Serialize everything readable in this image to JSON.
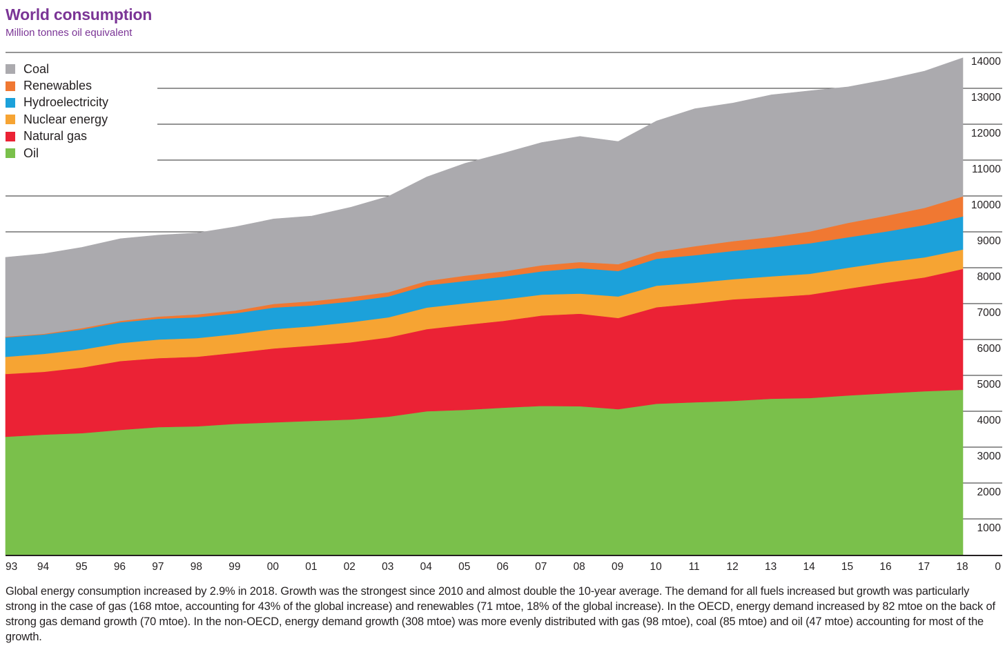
{
  "header": {
    "title": "World consumption",
    "subtitle": "Million tonnes oil equivalent"
  },
  "caption": "Global energy consumption increased by 2.9% in 2018. Growth was the strongest since 2010 and almost double the 10-year average. The demand for all fuels increased but growth was particularly strong in the case of gas (168 mtoe, accounting for 43% of the global increase) and renewables (71 mtoe, 18% of the global increase). In the OECD, energy demand increased by 82 mtoe on the back of strong gas demand growth (70 mtoe). In the non-OECD, energy demand growth (308 mtoe) was more evenly distributed with gas (98 mtoe), coal (85 mtoe) and oil (47 mtoe) accounting for most of the growth.",
  "chart_data": {
    "type": "area",
    "stacked": true,
    "title": "World consumption",
    "subtitle": "Million tonnes oil equivalent",
    "xlabel": "",
    "ylabel": "Million tonnes oil equivalent",
    "categories": [
      "93",
      "94",
      "95",
      "96",
      "97",
      "98",
      "99",
      "00",
      "01",
      "02",
      "03",
      "04",
      "05",
      "06",
      "07",
      "08",
      "09",
      "10",
      "11",
      "12",
      "13",
      "14",
      "15",
      "16",
      "17",
      "18"
    ],
    "ylim": [
      0,
      14000
    ],
    "yticks": [
      "0",
      "1000",
      "2000",
      "3000",
      "4000",
      "5000",
      "6000",
      "7000",
      "8000",
      "9000",
      "10000",
      "11000",
      "12000",
      "13000",
      "14000"
    ],
    "y_axis_side": "right",
    "grid": true,
    "legend_position": "top-left",
    "legend_order": [
      "Coal",
      "Renewables",
      "Hydroelectricity",
      "Nuclear energy",
      "Natural gas",
      "Oil"
    ],
    "series": [
      {
        "name": "Oil",
        "color": "#7ac04b",
        "values": [
          3290,
          3350,
          3390,
          3480,
          3560,
          3580,
          3650,
          3690,
          3730,
          3770,
          3850,
          4000,
          4040,
          4100,
          4150,
          4140,
          4060,
          4210,
          4250,
          4290,
          4350,
          4370,
          4440,
          4500,
          4560,
          4600
        ]
      },
      {
        "name": "Natural gas",
        "color": "#eb2235",
        "values": [
          1750,
          1750,
          1830,
          1920,
          1920,
          1940,
          1980,
          2060,
          2100,
          2150,
          2210,
          2290,
          2370,
          2420,
          2520,
          2580,
          2540,
          2690,
          2750,
          2830,
          2830,
          2880,
          2980,
          3080,
          3170,
          3370
        ]
      },
      {
        "name": "Nuclear energy",
        "color": "#f6a433",
        "values": [
          480,
          500,
          500,
          500,
          520,
          520,
          520,
          540,
          540,
          560,
          560,
          600,
          600,
          600,
          580,
          560,
          600,
          600,
          580,
          560,
          580,
          580,
          580,
          580,
          560,
          540
        ]
      },
      {
        "name": "Hydroelectricity",
        "color": "#1ca1da",
        "values": [
          540,
          540,
          560,
          580,
          580,
          580,
          580,
          600,
          580,
          580,
          580,
          620,
          620,
          630,
          650,
          710,
          710,
          750,
          770,
          790,
          810,
          850,
          850,
          850,
          900,
          920
        ]
      },
      {
        "name": "Renewables",
        "color": "#f07832",
        "values": [
          20,
          20,
          40,
          40,
          60,
          80,
          80,
          100,
          120,
          120,
          120,
          120,
          150,
          150,
          170,
          170,
          190,
          190,
          250,
          270,
          290,
          330,
          400,
          440,
          480,
          560
        ]
      },
      {
        "name": "Coal",
        "color": "#abaaae",
        "values": [
          2210,
          2230,
          2250,
          2290,
          2270,
          2270,
          2330,
          2370,
          2370,
          2500,
          2670,
          2900,
          3130,
          3290,
          3420,
          3500,
          3420,
          3650,
          3830,
          3850,
          3960,
          3920,
          3790,
          3790,
          3810,
          3860
        ]
      }
    ]
  }
}
